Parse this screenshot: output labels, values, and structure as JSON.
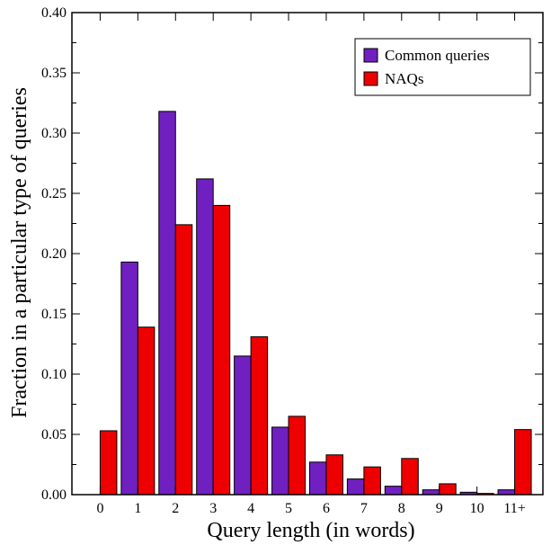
{
  "chart_data": {
    "type": "bar",
    "xlabel": "Query length (in words)",
    "ylabel": "Fraction in a particular type of queries",
    "categories": [
      "0",
      "1",
      "2",
      "3",
      "4",
      "5",
      "6",
      "7",
      "8",
      "9",
      "10",
      "11+"
    ],
    "ylim": [
      0,
      0.4
    ],
    "yticks": [
      "0.00",
      "0.05",
      "0.10",
      "0.15",
      "0.20",
      "0.25",
      "0.30",
      "0.35",
      "0.40"
    ],
    "grid": false,
    "legend_position": "top-right",
    "series": [
      {
        "name": "Common queries",
        "color": "#7020c0",
        "values": [
          0.0,
          0.193,
          0.318,
          0.262,
          0.115,
          0.056,
          0.027,
          0.013,
          0.007,
          0.004,
          0.002,
          0.004
        ]
      },
      {
        "name": "NAQs",
        "color": "#ee0000",
        "values": [
          0.053,
          0.139,
          0.224,
          0.24,
          0.131,
          0.065,
          0.033,
          0.023,
          0.03,
          0.009,
          0.001,
          0.054
        ]
      }
    ]
  }
}
